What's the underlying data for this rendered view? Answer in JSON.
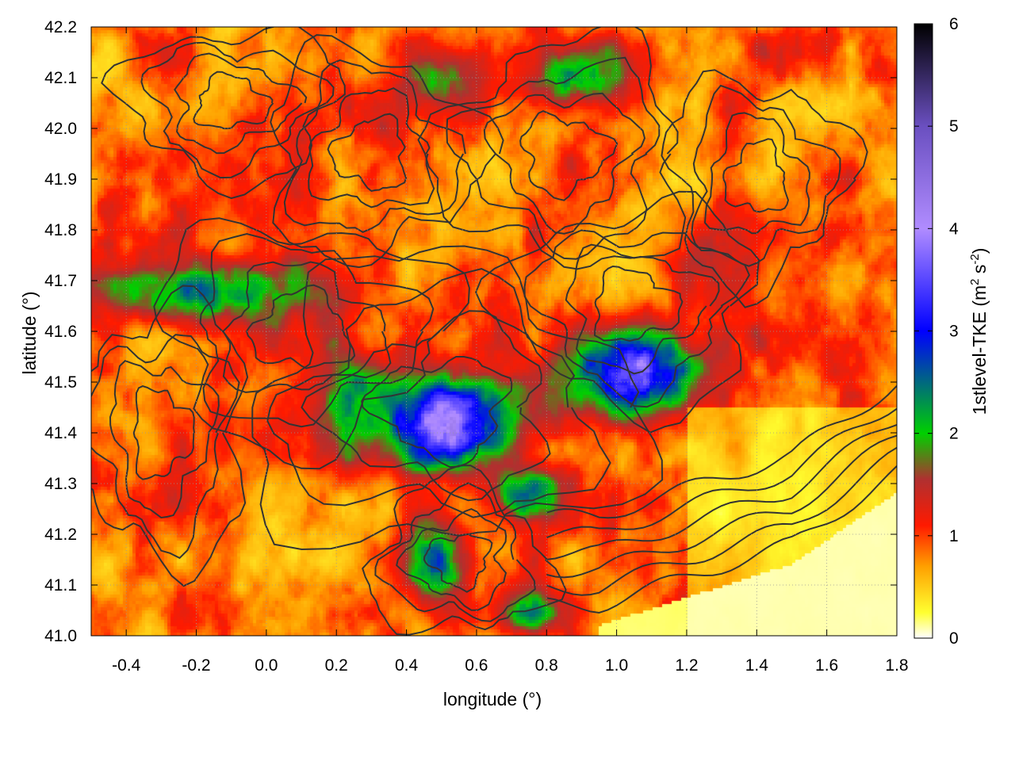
{
  "chart_data": {
    "type": "heatmap",
    "title": "",
    "xlabel": "longitude (°)",
    "ylabel": "latitude (°)",
    "xlim": [
      -0.5,
      1.8
    ],
    "ylim": [
      41.0,
      42.2
    ],
    "x_ticks": [
      -0.4,
      -0.2,
      0.0,
      0.2,
      0.4,
      0.6,
      0.8,
      1.0,
      1.2,
      1.4,
      1.6,
      1.8
    ],
    "x_tick_labels": [
      "-0.4",
      "-0.2",
      "0.0",
      "0.2",
      "0.4",
      "0.6",
      "0.8",
      "1.0",
      "1.2",
      "1.4",
      "1.6",
      "1.8"
    ],
    "y_ticks": [
      41.0,
      41.1,
      41.2,
      41.3,
      41.4,
      41.5,
      41.6,
      41.7,
      41.8,
      41.9,
      42.0,
      42.1,
      42.2
    ],
    "y_tick_labels": [
      "41.0",
      "41.1",
      "41.2",
      "41.3",
      "41.4",
      "41.5",
      "41.6",
      "41.7",
      "41.8",
      "41.9",
      "42.0",
      "42.1",
      "42.2"
    ],
    "grid": true,
    "colorbar": {
      "label_main": "1stlevel-TKE (m",
      "label_sup1": "2",
      "label_mid": " s",
      "label_sup2": "-2",
      "label_end": ")",
      "range": [
        0,
        6
      ],
      "ticks": [
        0,
        1,
        2,
        3,
        4,
        5,
        6
      ],
      "tick_labels": [
        "0",
        "1",
        "2",
        "3",
        "4",
        "5",
        "6"
      ],
      "stops": [
        {
          "v": 0.0,
          "color": "#ffffff"
        },
        {
          "v": 0.25,
          "color": "#ffff30"
        },
        {
          "v": 0.7,
          "color": "#ffa000"
        },
        {
          "v": 1.1,
          "color": "#ff1a00"
        },
        {
          "v": 1.55,
          "color": "#b03030"
        },
        {
          "v": 2.0,
          "color": "#00d000"
        },
        {
          "v": 3.0,
          "color": "#0000ff"
        },
        {
          "v": 4.0,
          "color": "#b08cff"
        },
        {
          "v": 5.0,
          "color": "#6a4fc0"
        },
        {
          "v": 6.0,
          "color": "#000000"
        }
      ]
    },
    "hotspots": [
      {
        "lon": 0.52,
        "lat": 41.42,
        "tke": 4.1,
        "rx": 0.18,
        "ry": 0.09
      },
      {
        "lon": 1.05,
        "lat": 41.52,
        "tke": 3.7,
        "rx": 0.17,
        "ry": 0.08
      },
      {
        "lon": -0.15,
        "lat": 41.68,
        "tke": 2.4,
        "rx": 0.3,
        "ry": 0.06
      },
      {
        "lon": 0.25,
        "lat": 41.45,
        "tke": 2.3,
        "rx": 0.1,
        "ry": 0.1
      },
      {
        "lon": 0.48,
        "lat": 41.15,
        "tke": 2.6,
        "rx": 0.1,
        "ry": 0.08
      },
      {
        "lon": 0.75,
        "lat": 41.28,
        "tke": 2.5,
        "rx": 0.1,
        "ry": 0.05
      },
      {
        "lon": 0.75,
        "lat": 41.05,
        "tke": 2.4,
        "rx": 0.1,
        "ry": 0.05
      },
      {
        "lon": 0.9,
        "lat": 42.1,
        "tke": 2.2,
        "rx": 0.15,
        "ry": 0.06
      },
      {
        "lon": 0.5,
        "lat": 42.1,
        "tke": 1.8,
        "rx": 0.15,
        "ry": 0.06
      },
      {
        "lon": 1.3,
        "lat": 41.75,
        "tke": 1.4,
        "rx": 0.15,
        "ry": 0.08
      },
      {
        "lon": 0.05,
        "lat": 41.4,
        "tke": 1.2,
        "rx": 0.25,
        "ry": 0.06
      },
      {
        "lon": -0.1,
        "lat": 41.9,
        "tke": 1.1,
        "rx": 0.15,
        "ry": 0.12
      }
    ],
    "sea_region": "southeast corner (near-zero TKE)",
    "contours": "black terrain contour lines"
  }
}
